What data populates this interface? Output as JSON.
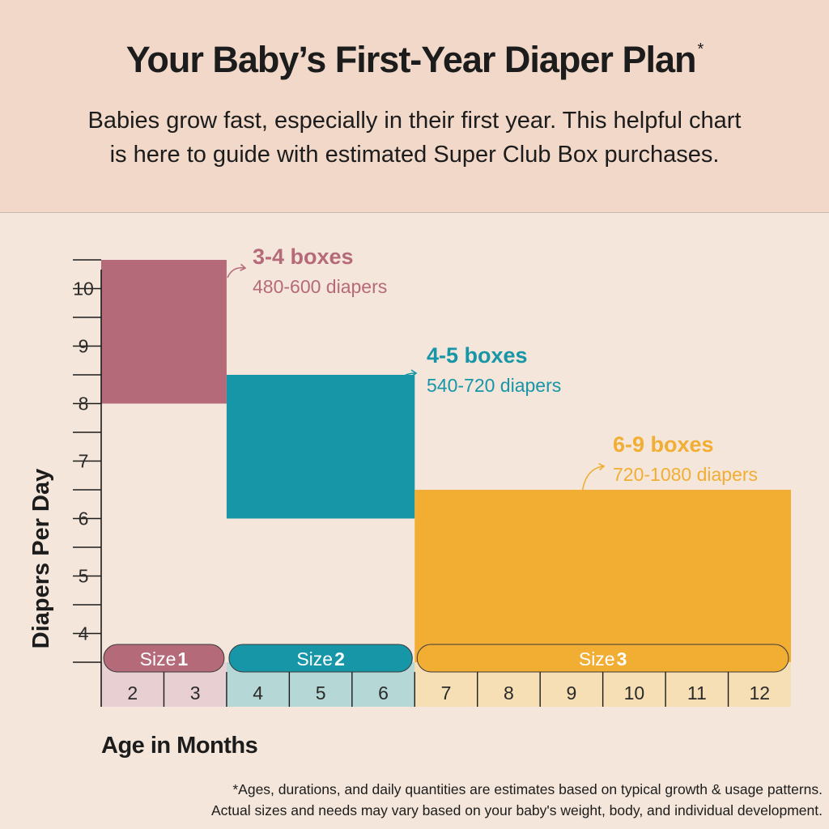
{
  "header": {
    "title": "Your Baby’s First-Year Diaper Plan",
    "title_mark": "*",
    "subtitle_line1": "Babies grow fast, especially in their first year. This helpful chart",
    "subtitle_line2": "is here to guide with estimated Super Club Box purchases."
  },
  "chart_data": {
    "type": "bar",
    "ylabel": "Diapers Per Day",
    "xlabel": "Age in Months",
    "ylim": [
      3.5,
      10.5
    ],
    "y_ticks": [
      "4",
      "5",
      "6",
      "7",
      "8",
      "9",
      "10"
    ],
    "x_ticks": [
      "2",
      "3",
      "4",
      "5",
      "6",
      "7",
      "8",
      "9",
      "10",
      "11",
      "12"
    ],
    "series": [
      {
        "size_word": "Size",
        "size_num": "1",
        "months": [
          "2",
          "3"
        ],
        "y_range": [
          8,
          10.5
        ],
        "boxes": "3-4 boxes",
        "diapers": "480-600 diapers",
        "color": "#b56a7a",
        "tint": "#e8cfd2"
      },
      {
        "size_word": "Size",
        "size_num": "2",
        "months": [
          "4",
          "5",
          "6"
        ],
        "y_range": [
          6,
          8.5
        ],
        "boxes": "4-5 boxes",
        "diapers": "540-720 diapers",
        "color": "#1796a8",
        "tint": "#b5d8d6"
      },
      {
        "size_word": "Size",
        "size_num": "3",
        "months": [
          "7",
          "8",
          "9",
          "10",
          "11",
          "12"
        ],
        "y_range": [
          3.5,
          6.5
        ],
        "boxes": "6-9 boxes",
        "diapers": "720-1080 diapers",
        "color": "#f1ae33",
        "tint": "#f6dfb4"
      }
    ]
  },
  "footnote": {
    "line1": "*Ages, durations, and daily quantities are estimates based on typical growth & usage patterns.",
    "line2": "Actual sizes and needs may vary based on your baby's weight, body, and individual development."
  }
}
